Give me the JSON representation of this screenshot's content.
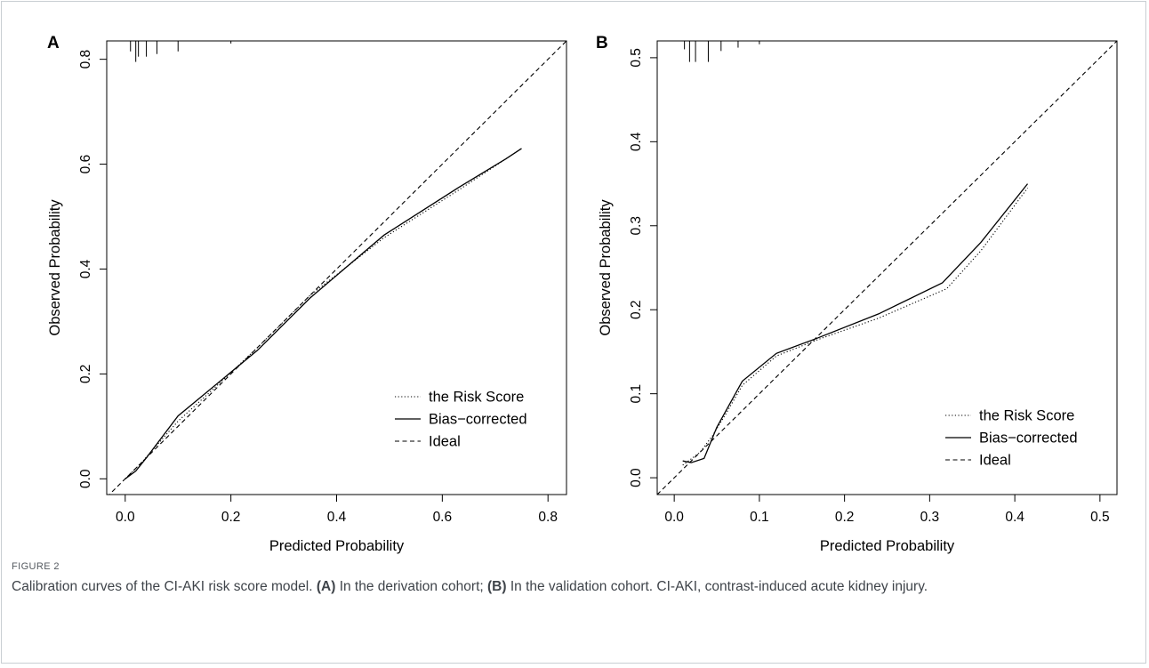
{
  "figure": {
    "label": "FIGURE 2",
    "caption": {
      "intro": "Calibration curves of the CI-AKI risk score model. ",
      "a_tag": "(A)",
      "a_text": " In the derivation cohort; ",
      "b_tag": "(B)",
      "b_text": " In the validation cohort. CI-AKI, contrast-induced acute kidney injury."
    }
  },
  "chart_data": [
    {
      "type": "line",
      "panel": "A",
      "xlabel": "Predicted Probability",
      "ylabel": "Observed Probability",
      "xlim": [
        -0.035,
        0.835
      ],
      "ylim": [
        -0.03,
        0.835
      ],
      "xticks": [
        "0.0",
        "0.2",
        "0.4",
        "0.6",
        "0.8"
      ],
      "xtick_values": [
        0,
        0.2,
        0.4,
        0.6,
        0.8
      ],
      "yticks": [
        "0.0",
        "0.2",
        "0.4",
        "0.6",
        "0.8"
      ],
      "ytick_values": [
        0,
        0.2,
        0.4,
        0.6,
        0.8
      ],
      "legend_position": "bottom-right",
      "legend": [
        "the Risk Score",
        "Bias−corrected",
        "Ideal"
      ],
      "series": [
        {
          "name": "the Risk Score",
          "style": "dotted",
          "points": [
            [
              0.0,
              0.0
            ],
            [
              0.03,
              0.03
            ],
            [
              0.1,
              0.11
            ],
            [
              0.16,
              0.165
            ],
            [
              0.25,
              0.25
            ],
            [
              0.35,
              0.35
            ],
            [
              0.49,
              0.46
            ],
            [
              0.63,
              0.55
            ],
            [
              0.75,
              0.63
            ]
          ]
        },
        {
          "name": "Bias−corrected",
          "style": "solid",
          "points": [
            [
              0.0,
              0.0
            ],
            [
              0.02,
              0.015
            ],
            [
              0.04,
              0.04
            ],
            [
              0.1,
              0.12
            ],
            [
              0.16,
              0.17
            ],
            [
              0.25,
              0.245
            ],
            [
              0.35,
              0.345
            ],
            [
              0.49,
              0.465
            ],
            [
              0.63,
              0.555
            ],
            [
              0.72,
              0.61
            ],
            [
              0.75,
              0.63
            ]
          ]
        },
        {
          "name": "Ideal",
          "style": "dashed",
          "points": [
            [
              -0.035,
              -0.035
            ],
            [
              0.835,
              0.835
            ]
          ]
        }
      ],
      "rug": [
        {
          "x": 0.01,
          "len": 0.02
        },
        {
          "x": 0.02,
          "len": 0.04
        },
        {
          "x": 0.025,
          "len": 0.03
        },
        {
          "x": 0.04,
          "len": 0.03
        },
        {
          "x": 0.06,
          "len": 0.025
        },
        {
          "x": 0.1,
          "len": 0.02
        },
        {
          "x": 0.2,
          "len": 0.005
        }
      ]
    },
    {
      "type": "line",
      "panel": "B",
      "xlabel": "Predicted Probability",
      "ylabel": "Observed Probability",
      "xlim": [
        -0.02,
        0.52
      ],
      "ylim": [
        -0.02,
        0.52
      ],
      "xticks": [
        "0.0",
        "0.1",
        "0.2",
        "0.3",
        "0.4",
        "0.5"
      ],
      "xtick_values": [
        0,
        0.1,
        0.2,
        0.3,
        0.4,
        0.5
      ],
      "yticks": [
        "0.0",
        "0.1",
        "0.2",
        "0.3",
        "0.4",
        "0.5"
      ],
      "ytick_values": [
        0,
        0.1,
        0.2,
        0.3,
        0.4,
        0.5
      ],
      "legend_position": "bottom-right",
      "legend": [
        "the Risk Score",
        "Bias−corrected",
        "Ideal"
      ],
      "series": [
        {
          "name": "the Risk Score",
          "style": "dotted",
          "points": [
            [
              0.01,
              0.015
            ],
            [
              0.03,
              0.03
            ],
            [
              0.045,
              0.05
            ],
            [
              0.06,
              0.075
            ],
            [
              0.08,
              0.11
            ],
            [
              0.12,
              0.145
            ],
            [
              0.17,
              0.165
            ],
            [
              0.24,
              0.19
            ],
            [
              0.32,
              0.225
            ],
            [
              0.36,
              0.27
            ],
            [
              0.415,
              0.345
            ]
          ]
        },
        {
          "name": "Bias−corrected",
          "style": "solid",
          "points": [
            [
              0.01,
              0.02
            ],
            [
              0.02,
              0.018
            ],
            [
              0.035,
              0.023
            ],
            [
              0.05,
              0.06
            ],
            [
              0.08,
              0.115
            ],
            [
              0.12,
              0.148
            ],
            [
              0.165,
              0.165
            ],
            [
              0.24,
              0.195
            ],
            [
              0.315,
              0.232
            ],
            [
              0.36,
              0.28
            ],
            [
              0.415,
              0.35
            ]
          ]
        },
        {
          "name": "Ideal",
          "style": "dashed",
          "points": [
            [
              -0.02,
              -0.02
            ],
            [
              0.52,
              0.52
            ]
          ]
        }
      ],
      "rug": [
        {
          "x": 0.012,
          "len": 0.01
        },
        {
          "x": 0.018,
          "len": 0.025
        },
        {
          "x": 0.025,
          "len": 0.025
        },
        {
          "x": 0.04,
          "len": 0.025
        },
        {
          "x": 0.055,
          "len": 0.012
        },
        {
          "x": 0.075,
          "len": 0.008
        },
        {
          "x": 0.1,
          "len": 0.004
        }
      ]
    }
  ]
}
